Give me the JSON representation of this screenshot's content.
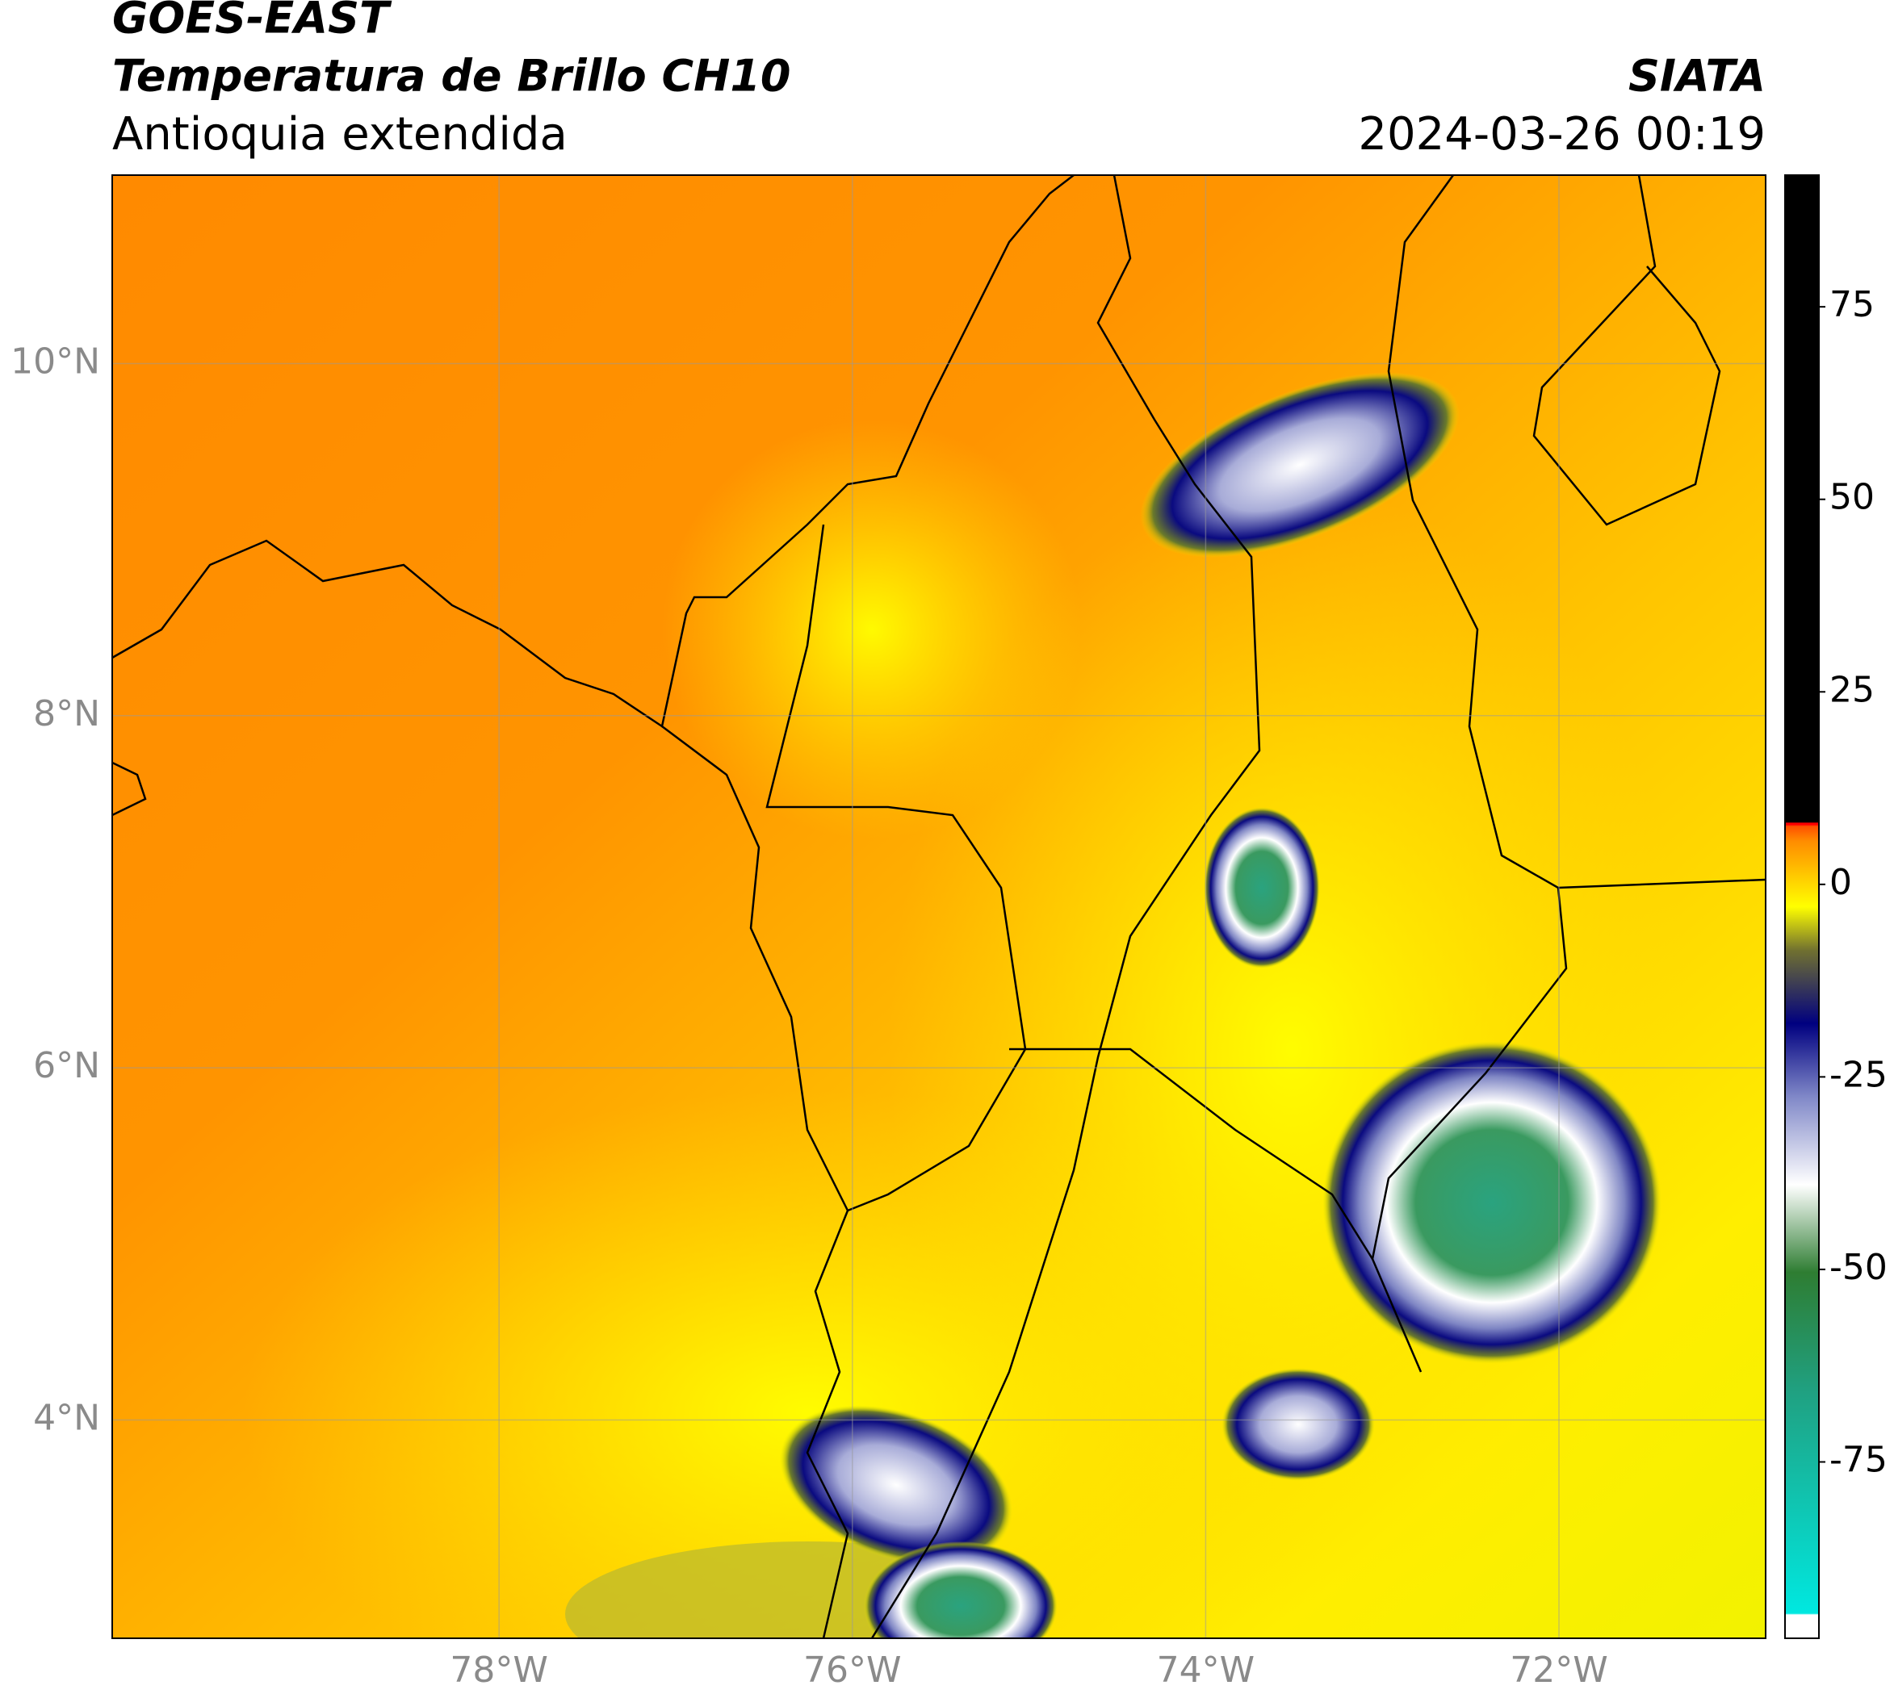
{
  "header": {
    "title": "GOES-EAST",
    "subtitle": "Temperatura de Brillo CH10",
    "region": "Antioquia extendida",
    "agency": "SIATA",
    "datetime": "2024-03-26 00:19"
  },
  "map": {
    "xlim": [
      -80.19,
      -70.83
    ],
    "ylim": [
      2.76,
      11.07
    ],
    "xticks": [
      {
        "value": -78,
        "label": "78°W"
      },
      {
        "value": -76,
        "label": "76°W"
      },
      {
        "value": -74,
        "label": "74°W"
      },
      {
        "value": -72,
        "label": "72°W"
      }
    ],
    "yticks": [
      {
        "value": 4,
        "label": "4°N"
      },
      {
        "value": 6,
        "label": "6°N"
      },
      {
        "value": 8,
        "label": "8°N"
      },
      {
        "value": 10,
        "label": "10°N"
      }
    ],
    "grid": true
  },
  "colorbar": {
    "lim": [
      -97.9,
      92.1
    ],
    "ticks": [
      -75,
      -50,
      -25,
      0,
      25,
      50,
      75
    ]
  }
}
